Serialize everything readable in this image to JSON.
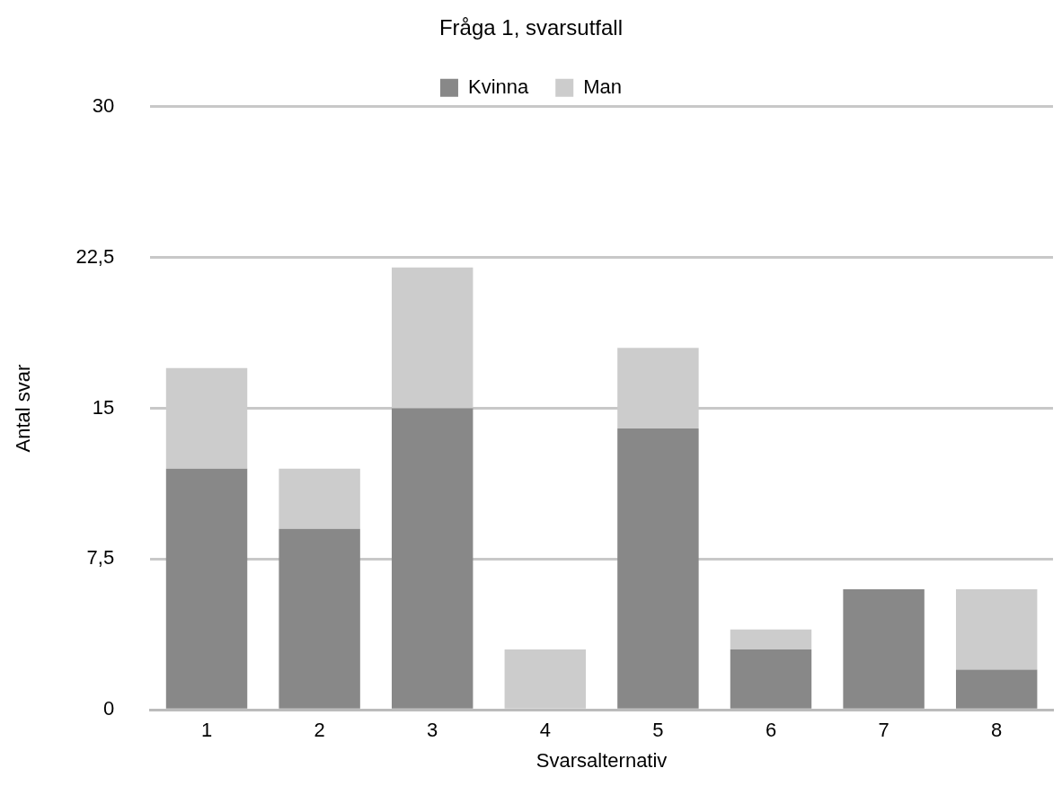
{
  "chart_data": {
    "type": "bar",
    "title": "Fråga 1, svarsutfall",
    "xlabel": "Svarsalternativ",
    "ylabel": "Antal svar",
    "categories": [
      "1",
      "2",
      "3",
      "4",
      "5",
      "6",
      "7",
      "8"
    ],
    "series": [
      {
        "name": "Kvinna",
        "color": "#888888",
        "values": [
          12,
          9,
          15,
          0,
          14,
          3,
          6,
          2
        ]
      },
      {
        "name": "Man",
        "color": "#cccccc",
        "values": [
          5,
          3,
          7,
          3,
          4,
          1,
          0,
          4
        ]
      }
    ],
    "stacked": true,
    "ylim": [
      0,
      30
    ],
    "yticks": [
      0,
      {
        "value": 7.5,
        "label": "7,5"
      },
      15,
      {
        "value": 22.5,
        "label": "22,5"
      },
      30
    ],
    "grid": "y",
    "legend": "top"
  }
}
